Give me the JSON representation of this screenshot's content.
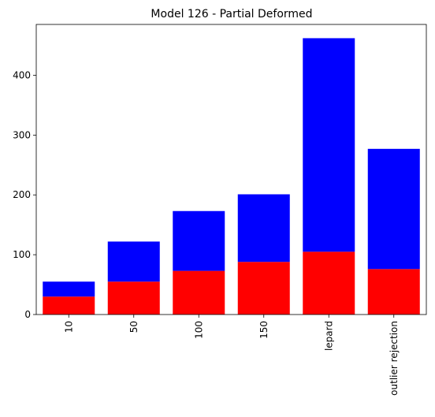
{
  "chart_data": {
    "type": "bar",
    "title": "Model 126 - Partial Deformed",
    "xlabel": "",
    "ylabel": "",
    "categories": [
      "10",
      "50",
      "100",
      "150",
      "lepard",
      "outlier rejection"
    ],
    "series": [
      {
        "color": "#ff0000",
        "values": [
          30,
          55,
          73,
          88,
          105,
          76
        ]
      },
      {
        "color": "#0000ff",
        "values": [
          25,
          67,
          100,
          113,
          357,
          201
        ]
      }
    ],
    "stacked": true,
    "totals": [
      55,
      122,
      173,
      201,
      462,
      277
    ],
    "ylim": [
      0,
      485
    ],
    "yticks": [
      0,
      100,
      200,
      300,
      400
    ],
    "grid": false,
    "legend": "none"
  }
}
